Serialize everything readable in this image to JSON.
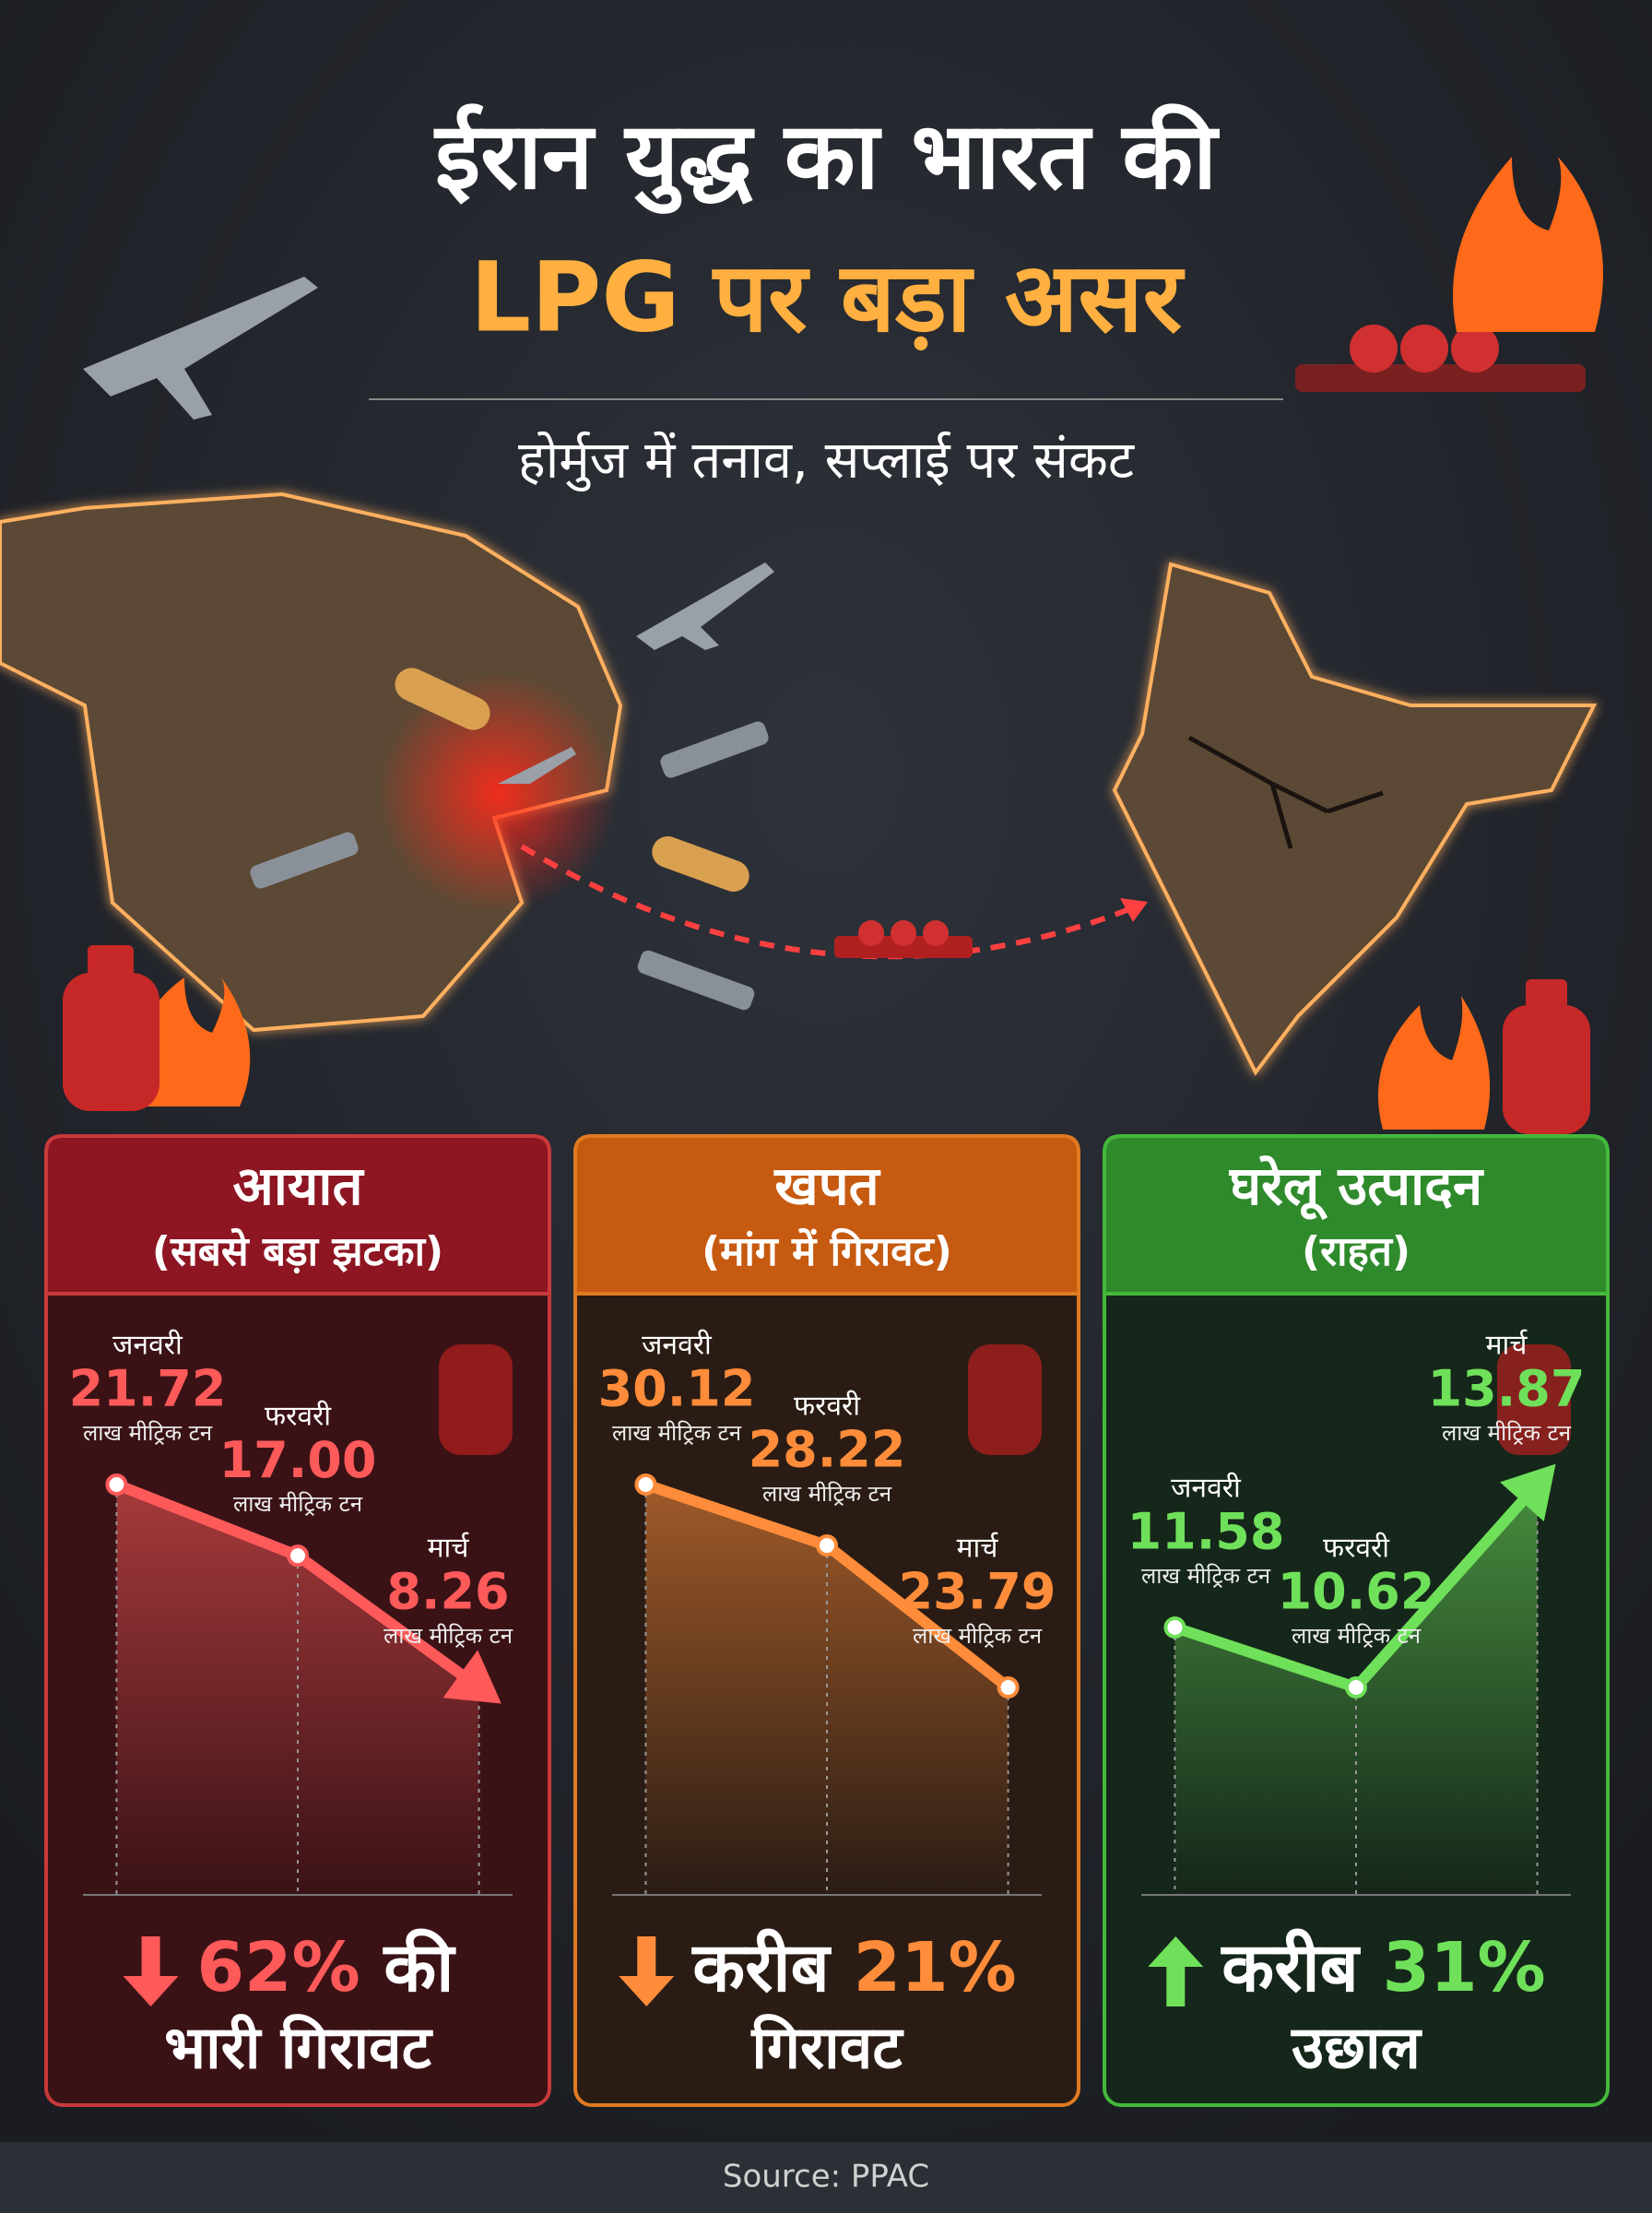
{
  "header": {
    "title_line1": "ईरान युद्ध का भारत की",
    "title_line2": "LPG पर बड़ा असर",
    "subtitle": "होर्मुज में तनाव, सप्लाई पर संकट"
  },
  "chart_data": [
    {
      "type": "line",
      "title": "आयात",
      "subtitle": "(सबसे बड़ा झटका)",
      "categories": [
        "जनवरी",
        "फरवरी",
        "मार्च"
      ],
      "values": [
        21.72,
        17.0,
        8.26
      ],
      "value_labels": [
        "21.72",
        "17.00",
        "8.26"
      ],
      "unit": "लाख मीट्रिक टन",
      "color": "#ff5a5a",
      "header_color": "#8e1522",
      "body_color": "#3a1216",
      "border_color": "#c83a3a",
      "line_end": "arrow",
      "trend": "down",
      "summary": {
        "words": [
          "62%",
          "की"
        ],
        "highlight": 0,
        "line2": "भारी गिरावट"
      }
    },
    {
      "type": "line",
      "title": "खपत",
      "subtitle": "(मांग में गिरावट)",
      "categories": [
        "जनवरी",
        "फरवरी",
        "मार्च"
      ],
      "values": [
        30.12,
        28.22,
        23.79
      ],
      "value_labels": [
        "30.12",
        "28.22",
        "23.79"
      ],
      "unit": "लाख मीट्रिक टन",
      "color": "#ff8c3a",
      "header_color": "#c65a10",
      "body_color": "#2a1c14",
      "border_color": "#e07a22",
      "line_end": "circle",
      "trend": "down",
      "summary": {
        "words": [
          "करीब",
          "21%"
        ],
        "highlight": 1,
        "line2": "गिरावट"
      }
    },
    {
      "type": "line",
      "title": "घरेलू उत्पादन",
      "subtitle": "(राहत)",
      "categories": [
        "जनवरी",
        "फरवरी",
        "मार्च"
      ],
      "values": [
        11.58,
        10.62,
        13.87
      ],
      "value_labels": [
        "11.58",
        "10.62",
        "13.87"
      ],
      "unit": "लाख मीट्रिक टन",
      "color": "#6fe05a",
      "header_color": "#2f8a2c",
      "body_color": "#15261a",
      "border_color": "#44b83c",
      "line_end": "arrow",
      "trend": "up",
      "summary": {
        "words": [
          "करीब",
          "31%"
        ],
        "highlight": 1,
        "line2": "उछाल"
      }
    }
  ],
  "source": "Source: PPAC"
}
